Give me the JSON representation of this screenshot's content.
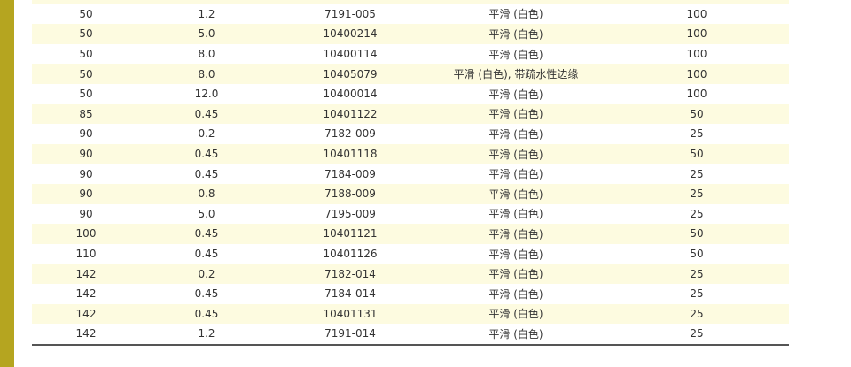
{
  "colors": {
    "accent_bar": "#b5a520",
    "row_alt": "#fdfbe0",
    "rule": "#555555"
  },
  "rows": [
    [
      "50",
      "1.2",
      "7191-005",
      "平滑 (白色)",
      "100"
    ],
    [
      "50",
      "5.0",
      "10400214",
      "平滑 (白色)",
      "100"
    ],
    [
      "50",
      "8.0",
      "10400114",
      "平滑 (白色)",
      "100"
    ],
    [
      "50",
      "8.0",
      "10405079",
      "平滑 (白色), 带疏水性边缘",
      "100"
    ],
    [
      "50",
      "12.0",
      "10400014",
      "平滑 (白色)",
      "100"
    ],
    [
      "85",
      "0.45",
      "10401122",
      "平滑 (白色)",
      "50"
    ],
    [
      "90",
      "0.2",
      "7182-009",
      "平滑 (白色)",
      "25"
    ],
    [
      "90",
      "0.45",
      "10401118",
      "平滑 (白色)",
      "50"
    ],
    [
      "90",
      "0.45",
      "7184-009",
      "平滑 (白色)",
      "25"
    ],
    [
      "90",
      "0.8",
      "7188-009",
      "平滑 (白色)",
      "25"
    ],
    [
      "90",
      "5.0",
      "7195-009",
      "平滑 (白色)",
      "25"
    ],
    [
      "100",
      "0.45",
      "10401121",
      "平滑 (白色)",
      "50"
    ],
    [
      "110",
      "0.45",
      "10401126",
      "平滑 (白色)",
      "50"
    ],
    [
      "142",
      "0.2",
      "7182-014",
      "平滑 (白色)",
      "25"
    ],
    [
      "142",
      "0.45",
      "7184-014",
      "平滑 (白色)",
      "25"
    ],
    [
      "142",
      "0.45",
      "10401131",
      "平滑 (白色)",
      "25"
    ],
    [
      "142",
      "1.2",
      "7191-014",
      "平滑 (白色)",
      "25"
    ]
  ]
}
